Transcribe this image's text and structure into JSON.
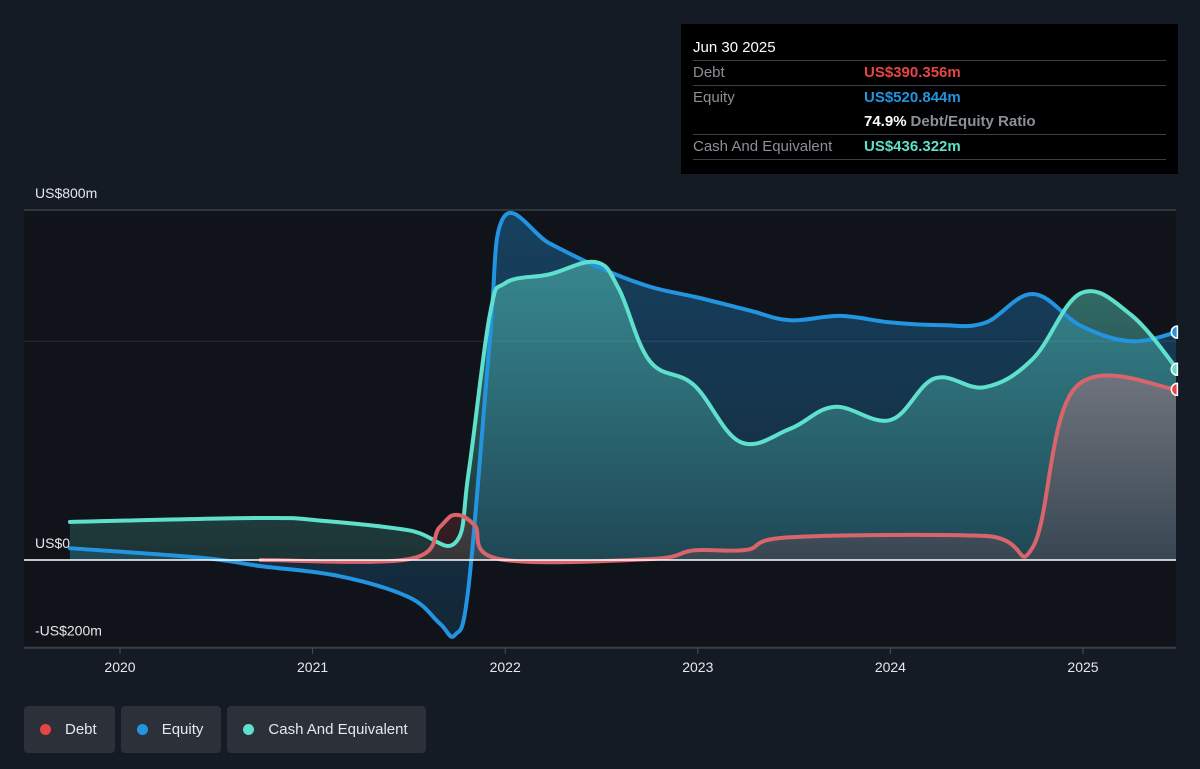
{
  "colors": {
    "debt": "#e64545",
    "equity": "#2394df",
    "cash": "#5fe0cc",
    "background": "#151b24",
    "tooltip_bg": "#000000"
  },
  "tooltip": {
    "date": "Jun 30 2025",
    "rows": [
      {
        "label": "Debt",
        "value": "US$390.356m",
        "series": "debt"
      },
      {
        "label": "Equity",
        "value": "US$520.844m",
        "series": "equity"
      },
      {
        "label": "",
        "ratio_value": "74.9%",
        "ratio_label": "Debt/Equity Ratio"
      },
      {
        "label": "Cash And Equivalent",
        "value": "US$436.322m",
        "series": "cash"
      }
    ]
  },
  "legend": [
    {
      "label": "Debt",
      "series": "debt"
    },
    {
      "label": "Equity",
      "series": "equity"
    },
    {
      "label": "Cash And Equivalent",
      "series": "cash"
    }
  ],
  "chart_data": {
    "type": "area",
    "title": "",
    "xlabel": "",
    "ylabel": "",
    "y_unit": "US$ millions",
    "ylim": [
      -200,
      800
    ],
    "xlim": [
      2019.5,
      2025.5
    ],
    "y_ticks": [
      {
        "value": 800,
        "label": "US$800m"
      },
      {
        "value": 0,
        "label": "US$0"
      },
      {
        "value": -200,
        "label": "-US$200m"
      }
    ],
    "x_ticks": [
      {
        "value": 2020,
        "label": "2020"
      },
      {
        "value": 2021,
        "label": "2021"
      },
      {
        "value": 2022,
        "label": "2022"
      },
      {
        "value": 2023,
        "label": "2023"
      },
      {
        "value": 2024,
        "label": "2024"
      },
      {
        "value": 2025,
        "label": "2025"
      }
    ],
    "grid": true,
    "legend_position": "bottom-left",
    "series": [
      {
        "name": "Equity",
        "key": "equity",
        "x": [
          2019.74,
          2020.42,
          2020.73,
          2021.14,
          2021.5,
          2021.66,
          2021.74,
          2021.81,
          2021.92,
          2021.99,
          2022.23,
          2022.49,
          2022.75,
          2023.0,
          2023.27,
          2023.48,
          2023.74,
          2024.0,
          2024.26,
          2024.49,
          2024.74,
          2024.99,
          2025.25,
          2025.49
        ],
        "values": [
          27,
          5,
          -14,
          -37,
          -85,
          -145,
          -171,
          -60,
          500,
          782,
          724,
          668,
          625,
          600,
          570,
          548,
          558,
          543,
          537,
          542,
          608,
          535,
          500,
          521
        ]
      },
      {
        "name": "Cash And Equivalent",
        "key": "cash",
        "x": [
          2019.74,
          2020.73,
          2021.04,
          2021.5,
          2021.74,
          2021.81,
          2021.92,
          2022.0,
          2022.23,
          2022.47,
          2022.59,
          2022.75,
          2022.98,
          2023.22,
          2023.48,
          2023.71,
          2024.0,
          2024.23,
          2024.49,
          2024.74,
          2024.99,
          2025.25,
          2025.49
        ],
        "values": [
          87,
          96,
          90,
          68,
          39,
          200,
          560,
          633,
          653,
          681,
          620,
          455,
          400,
          270,
          300,
          350,
          320,
          415,
          395,
          460,
          610,
          560,
          436
        ]
      },
      {
        "name": "Debt",
        "key": "debt",
        "x": [
          2020.73,
          2021.5,
          2021.66,
          2021.74,
          2021.84,
          2021.97,
          2022.75,
          2022.98,
          2023.25,
          2023.48,
          2024.49,
          2024.74,
          2024.96,
          2025.49
        ],
        "values": [
          0,
          2,
          75,
          103,
          80,
          2,
          2,
          22,
          23,
          52,
          55,
          30,
          394,
          390
        ]
      }
    ]
  }
}
